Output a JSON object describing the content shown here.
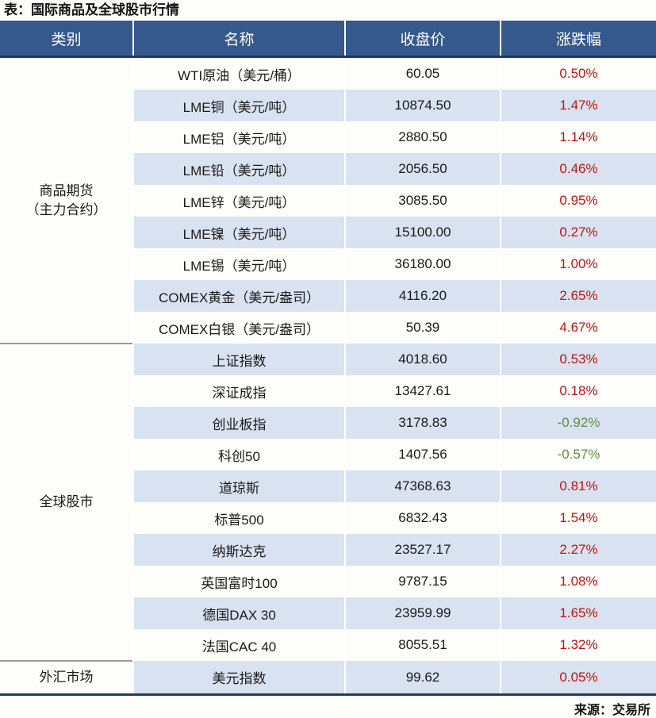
{
  "page": {
    "title": "表：国际商品及全球股市行情",
    "source": "来源：交易所"
  },
  "colors": {
    "header_bg": "#35598C",
    "header_border": "#1F3A66",
    "stripe": "#D9E2F0",
    "up_red": "#C21310",
    "down_green": "#5E8F3E"
  },
  "table": {
    "headers": [
      "类别",
      "名称",
      "收盘价",
      "涨跌幅"
    ],
    "sections": [
      {
        "category": [
          "商品期货",
          "（主力合约）"
        ],
        "rows": [
          {
            "name": "WTI原油（美元/桶）",
            "close": "60.05",
            "change": "0.50%"
          },
          {
            "name": "LME铜（美元/吨）",
            "close": "10874.50",
            "change": "1.47%"
          },
          {
            "name": "LME铝（美元/吨）",
            "close": "2880.50",
            "change": "1.14%"
          },
          {
            "name": "LME铅（美元/吨）",
            "close": "2056.50",
            "change": "0.46%"
          },
          {
            "name": "LME锌（美元/吨）",
            "close": "3085.50",
            "change": "0.95%"
          },
          {
            "name": "LME镍（美元/吨）",
            "close": "15100.00",
            "change": "0.27%"
          },
          {
            "name": "LME锡（美元/吨）",
            "close": "36180.00",
            "change": "1.00%"
          },
          {
            "name": "COMEX黄金（美元/盎司）",
            "close": "4116.20",
            "change": "2.65%"
          },
          {
            "name": "COMEX白银（美元/盎司）",
            "close": "50.39",
            "change": "4.67%"
          }
        ]
      },
      {
        "category": [
          "全球股市"
        ],
        "rows": [
          {
            "name": "上证指数",
            "close": "4018.60",
            "change": "0.53%"
          },
          {
            "name": "深证成指",
            "close": "13427.61",
            "change": "0.18%"
          },
          {
            "name": "创业板指",
            "close": "3178.83",
            "change": "-0.92%"
          },
          {
            "name": "科创50",
            "close": "1407.56",
            "change": "-0.57%"
          },
          {
            "name": "道琼斯",
            "close": "47368.63",
            "change": "0.81%"
          },
          {
            "name": "标普500",
            "close": "6832.43",
            "change": "1.54%"
          },
          {
            "name": "纳斯达克",
            "close": "23527.17",
            "change": "2.27%"
          },
          {
            "name": "英国富时100",
            "close": "9787.15",
            "change": "1.08%"
          },
          {
            "name": "德国DAX 30",
            "close": "23959.99",
            "change": "1.65%"
          },
          {
            "name": "法国CAC 40",
            "close": "8055.51",
            "change": "1.32%"
          }
        ]
      },
      {
        "category": [
          "外汇市场"
        ],
        "rows": [
          {
            "name": "美元指数",
            "close": "99.62",
            "change": "0.05%"
          }
        ]
      }
    ]
  },
  "chart_data": {
    "type": "table",
    "title": "表：国际商品及全球股市行情",
    "columns": [
      "类别",
      "名称",
      "收盘价",
      "涨跌幅"
    ],
    "rows": [
      [
        "商品期货（主力合约）",
        "WTI原油（美元/桶）",
        60.05,
        "0.50%"
      ],
      [
        "商品期货（主力合约）",
        "LME铜（美元/吨）",
        10874.5,
        "1.47%"
      ],
      [
        "商品期货（主力合约）",
        "LME铝（美元/吨）",
        2880.5,
        "1.14%"
      ],
      [
        "商品期货（主力合约）",
        "LME铅（美元/吨）",
        2056.5,
        "0.46%"
      ],
      [
        "商品期货（主力合约）",
        "LME锌（美元/吨）",
        3085.5,
        "0.95%"
      ],
      [
        "商品期货（主力合约）",
        "LME镍（美元/吨）",
        15100.0,
        "0.27%"
      ],
      [
        "商品期货（主力合约）",
        "LME锡（美元/吨）",
        36180.0,
        "1.00%"
      ],
      [
        "商品期货（主力合约）",
        "COMEX黄金（美元/盎司）",
        4116.2,
        "2.65%"
      ],
      [
        "商品期货（主力合约）",
        "COMEX白银（美元/盎司）",
        50.39,
        "4.67%"
      ],
      [
        "全球股市",
        "上证指数",
        4018.6,
        "0.53%"
      ],
      [
        "全球股市",
        "深证成指",
        13427.61,
        "0.18%"
      ],
      [
        "全球股市",
        "创业板指",
        3178.83,
        "-0.92%"
      ],
      [
        "全球股市",
        "科创50",
        1407.56,
        "-0.57%"
      ],
      [
        "全球股市",
        "道琼斯",
        47368.63,
        "0.81%"
      ],
      [
        "全球股市",
        "标普500",
        6832.43,
        "1.54%"
      ],
      [
        "全球股市",
        "纳斯达克",
        23527.17,
        "2.27%"
      ],
      [
        "全球股市",
        "英国富时100",
        9787.15,
        "1.08%"
      ],
      [
        "全球股市",
        "德国DAX 30",
        23959.99,
        "1.65%"
      ],
      [
        "全球股市",
        "法国CAC 40",
        8055.51,
        "1.32%"
      ],
      [
        "外汇市场",
        "美元指数",
        99.62,
        "0.05%"
      ]
    ],
    "notes": "negative changes shown in green, positive in red; source: 交易所"
  }
}
